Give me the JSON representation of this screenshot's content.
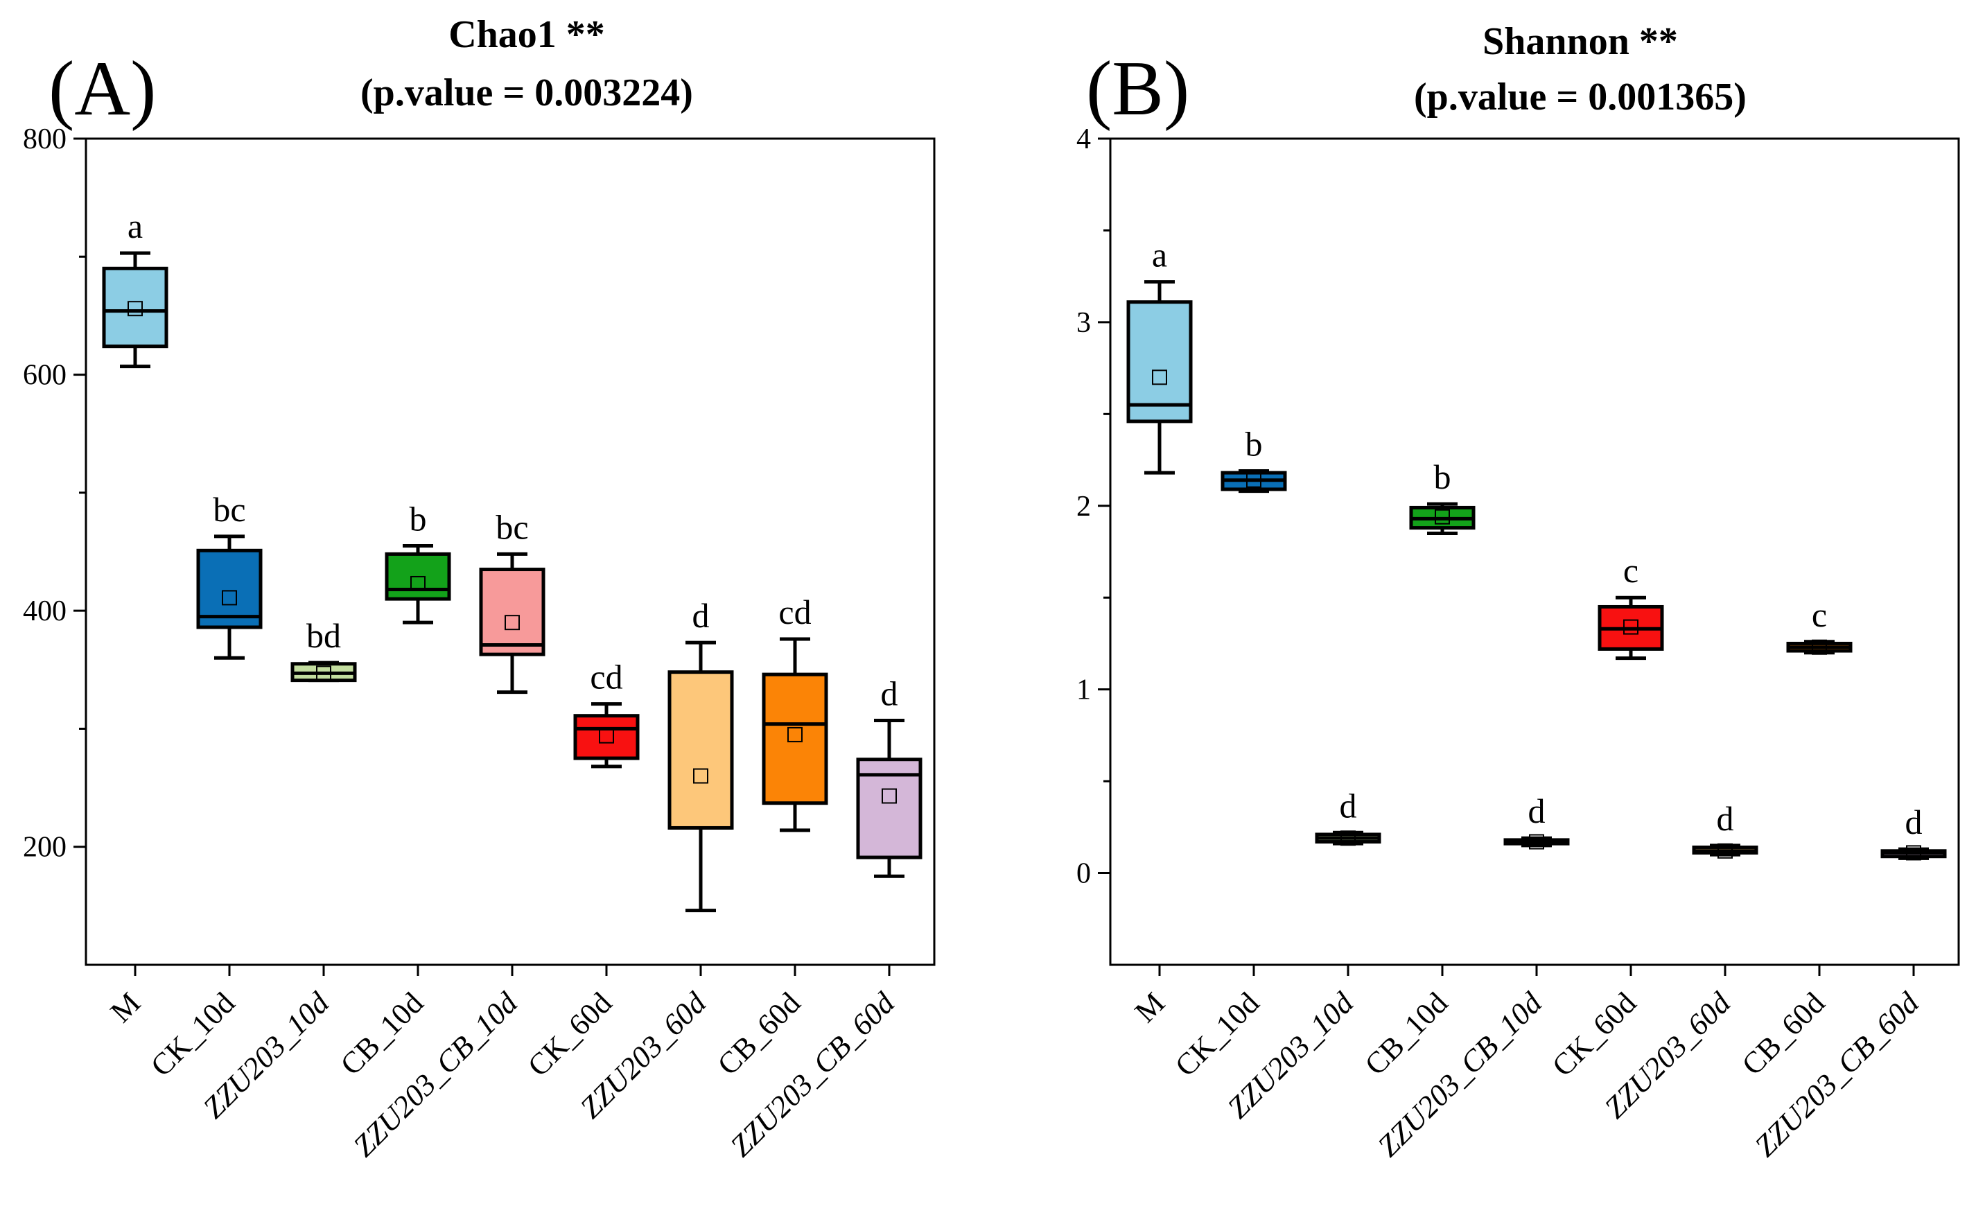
{
  "chart_data": [
    {
      "type": "box",
      "panel_label": "(A)",
      "title": "Chao1 **",
      "subtitle": "(p.value = 0.003224)",
      "xlabel": "",
      "ylabel": "",
      "ylim": [
        100,
        800
      ],
      "yticks": [
        200,
        400,
        600,
        800
      ],
      "categories": [
        "M",
        "CK_10d",
        "ZZU203_10d",
        "CB_10d",
        "ZZU203_CB_10d",
        "CK_60d",
        "ZZU203_60d",
        "CB_60d",
        "ZZU203_CB_60d"
      ],
      "colors": [
        "#8ccde4",
        "#0a6fb6",
        "#c3dd9f",
        "#13a21a",
        "#f79a9a",
        "#f81111",
        "#fdc77a",
        "#fb8406",
        "#d4b7d8"
      ],
      "boxes": [
        {
          "min": 607,
          "q1": 624,
          "median": 654,
          "q3": 690,
          "max": 703,
          "mean": 656,
          "letter": "a"
        },
        {
          "min": 360,
          "q1": 386,
          "median": 395,
          "q3": 451,
          "max": 463,
          "mean": 411,
          "letter": "bc"
        },
        {
          "min": 341,
          "q1": 341,
          "median": 347,
          "q3": 355,
          "max": 356,
          "mean": 347,
          "letter": "bd"
        },
        {
          "min": 390,
          "q1": 410,
          "median": 418,
          "q3": 448,
          "max": 455,
          "mean": 423,
          "letter": "b"
        },
        {
          "min": 331,
          "q1": 363,
          "median": 371,
          "q3": 435,
          "max": 448,
          "mean": 390,
          "letter": "bc"
        },
        {
          "min": 268,
          "q1": 275,
          "median": 300,
          "q3": 311,
          "max": 321,
          "mean": 294,
          "letter": "cd"
        },
        {
          "min": 146,
          "q1": 216,
          "median": 216,
          "q3": 348,
          "max": 373,
          "mean": 260,
          "letter": "d"
        },
        {
          "min": 214,
          "q1": 237,
          "median": 304,
          "q3": 346,
          "max": 376,
          "mean": 295,
          "letter": "cd"
        },
        {
          "min": 175,
          "q1": 191,
          "median": 261,
          "q3": 274,
          "max": 307,
          "mean": 243,
          "letter": "d"
        }
      ]
    },
    {
      "type": "box",
      "panel_label": "(B)",
      "title": "Shannon **",
      "subtitle": "(p.value = 0.001365)",
      "xlabel": "",
      "ylabel": "",
      "ylim": [
        -0.5,
        4
      ],
      "yticks": [
        0,
        1,
        2,
        3,
        4
      ],
      "categories": [
        "M",
        "CK_10d",
        "ZZU203_10d",
        "CB_10d",
        "ZZU203_CB_10d",
        "CK_60d",
        "ZZU203_60d",
        "CB_60d",
        "ZZU203_CB_60d"
      ],
      "colors": [
        "#8ccde4",
        "#0a6fb6",
        "#c3dd9f",
        "#13a21a",
        "#f79a9a",
        "#f81111",
        "#fdc77a",
        "#fb8406",
        "#d4b7d8"
      ],
      "boxes": [
        {
          "min": 2.18,
          "q1": 2.46,
          "median": 2.55,
          "q3": 3.11,
          "max": 3.22,
          "mean": 2.7,
          "letter": "a"
        },
        {
          "min": 2.08,
          "q1": 2.09,
          "median": 2.14,
          "q3": 2.18,
          "max": 2.19,
          "mean": 2.14,
          "letter": "b"
        },
        {
          "min": 0.16,
          "q1": 0.17,
          "median": 0.19,
          "q3": 0.21,
          "max": 0.22,
          "mean": 0.19,
          "letter": "d"
        },
        {
          "min": 1.85,
          "q1": 1.88,
          "median": 1.93,
          "q3": 1.99,
          "max": 2.01,
          "mean": 1.94,
          "letter": "b"
        },
        {
          "min": 0.15,
          "q1": 0.16,
          "median": 0.17,
          "q3": 0.18,
          "max": 0.19,
          "mean": 0.17,
          "letter": "d"
        },
        {
          "min": 1.17,
          "q1": 1.22,
          "median": 1.33,
          "q3": 1.45,
          "max": 1.5,
          "mean": 1.34,
          "letter": "c"
        },
        {
          "min": 0.1,
          "q1": 0.11,
          "median": 0.12,
          "q3": 0.14,
          "max": 0.15,
          "mean": 0.12,
          "letter": "d"
        },
        {
          "min": 1.2,
          "q1": 1.21,
          "median": 1.23,
          "q3": 1.25,
          "max": 1.26,
          "mean": 1.23,
          "letter": "c"
        },
        {
          "min": 0.08,
          "q1": 0.09,
          "median": 0.11,
          "q3": 0.12,
          "max": 0.13,
          "mean": 0.11,
          "letter": "d"
        }
      ]
    }
  ]
}
